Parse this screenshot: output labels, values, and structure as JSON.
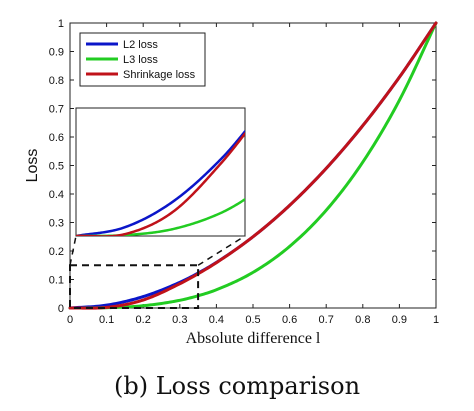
{
  "chart_data": {
    "type": "line",
    "xlabel": "Absolute difference l",
    "ylabel": "Loss",
    "xlim": [
      0,
      1
    ],
    "ylim": [
      0,
      1
    ],
    "x_ticks": [
      "0",
      "0.1",
      "0.2",
      "0.3",
      "0.4",
      "0.5",
      "0.6",
      "0.7",
      "0.8",
      "0.9",
      "1"
    ],
    "y_ticks": [
      "0",
      "0.1",
      "0.2",
      "0.3",
      "0.4",
      "0.5",
      "0.6",
      "0.7",
      "0.8",
      "0.9",
      "1"
    ],
    "grid": false,
    "legend_position": "top-left",
    "series": [
      {
        "name": "L2 loss",
        "color": "#0b16c9",
        "x": [
          0,
          0.1,
          0.2,
          0.3,
          0.35,
          0.4,
          0.5,
          0.6,
          0.7,
          0.8,
          0.9,
          1
        ],
        "values": [
          0,
          0.01,
          0.04,
          0.09,
          0.1225,
          0.16,
          0.25,
          0.36,
          0.49,
          0.64,
          0.81,
          1
        ]
      },
      {
        "name": "L3 loss",
        "color": "#22cc22",
        "x": [
          0,
          0.1,
          0.2,
          0.3,
          0.35,
          0.4,
          0.5,
          0.6,
          0.7,
          0.8,
          0.9,
          1
        ],
        "values": [
          0,
          0.001,
          0.008,
          0.027,
          0.043,
          0.064,
          0.125,
          0.216,
          0.343,
          0.512,
          0.729,
          1
        ]
      },
      {
        "name": "Shrinkage loss",
        "color": "#c0121a",
        "x": [
          0,
          0.1,
          0.2,
          0.3,
          0.35,
          0.4,
          0.5,
          0.6,
          0.7,
          0.8,
          0.9,
          1
        ],
        "values": [
          0,
          0.002,
          0.028,
          0.085,
          0.12,
          0.159,
          0.25,
          0.36,
          0.49,
          0.64,
          0.81,
          1
        ]
      }
    ],
    "inset": {
      "zoom_region": {
        "xlim": [
          0,
          0.35
        ],
        "ylim": [
          0,
          0.15
        ]
      }
    }
  },
  "caption": "(b) Loss comparison"
}
